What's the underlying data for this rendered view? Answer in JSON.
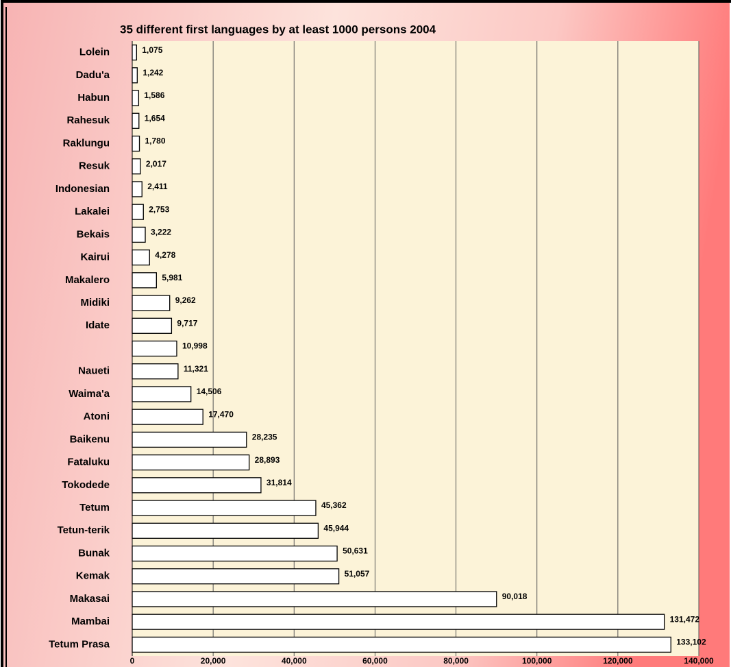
{
  "chart_data": {
    "type": "bar",
    "orientation": "horizontal",
    "title": "35 different first languages by at least 1000 persons 2004",
    "categories": [
      "Lolein",
      "Dadu'a",
      "Habun",
      "Rahesuk",
      "Raklungu",
      "Resuk",
      "Indonesian",
      "Lakalei",
      "Bekais",
      "Kairui",
      "Makalero",
      "Midiki",
      "Idate",
      null,
      "Naueti",
      "Waima'a",
      "Atoni",
      "Baikenu",
      "Fataluku",
      "Tokodede",
      "Tetum",
      "Tetun-terik",
      "Bunak",
      "Kemak",
      "Makasai",
      "Mambai",
      "Tetum Prasa"
    ],
    "values": [
      1075,
      1242,
      1586,
      1654,
      1780,
      2017,
      2411,
      2753,
      3222,
      4278,
      5981,
      9262,
      9717,
      10998,
      11321,
      14506,
      17470,
      28235,
      28893,
      31814,
      45362,
      45944,
      50631,
      51057,
      90018,
      131472,
      133102
    ],
    "value_labels": [
      "1,075",
      "1,242",
      "1,586",
      "1,654",
      "1,780",
      "2,017",
      "2,411",
      "2,753",
      "3,222",
      "4,278",
      "5,981",
      "9,262",
      "9,717",
      "10,998",
      "11,321",
      "14,506",
      "17,470",
      "28,235",
      "28,893",
      "31,814",
      "45,362",
      "45,944",
      "50,631",
      "51,057",
      "90,018",
      "131,472",
      "133,102"
    ],
    "color": "#ffffff",
    "xlim": [
      0,
      140000
    ],
    "xticks": [
      0,
      {
        "value": 20000,
        "label": "20,000"
      },
      {
        "value": 40000,
        "label": "40,000"
      },
      {
        "value": 60000,
        "label": "60,000"
      },
      {
        "value": 80000,
        "label": "80,000"
      },
      {
        "value": 100000,
        "label": "100,000"
      },
      {
        "value": 120000,
        "label": "120,000"
      },
      {
        "value": 140000,
        "label": "140,000"
      }
    ],
    "grid": true
  }
}
